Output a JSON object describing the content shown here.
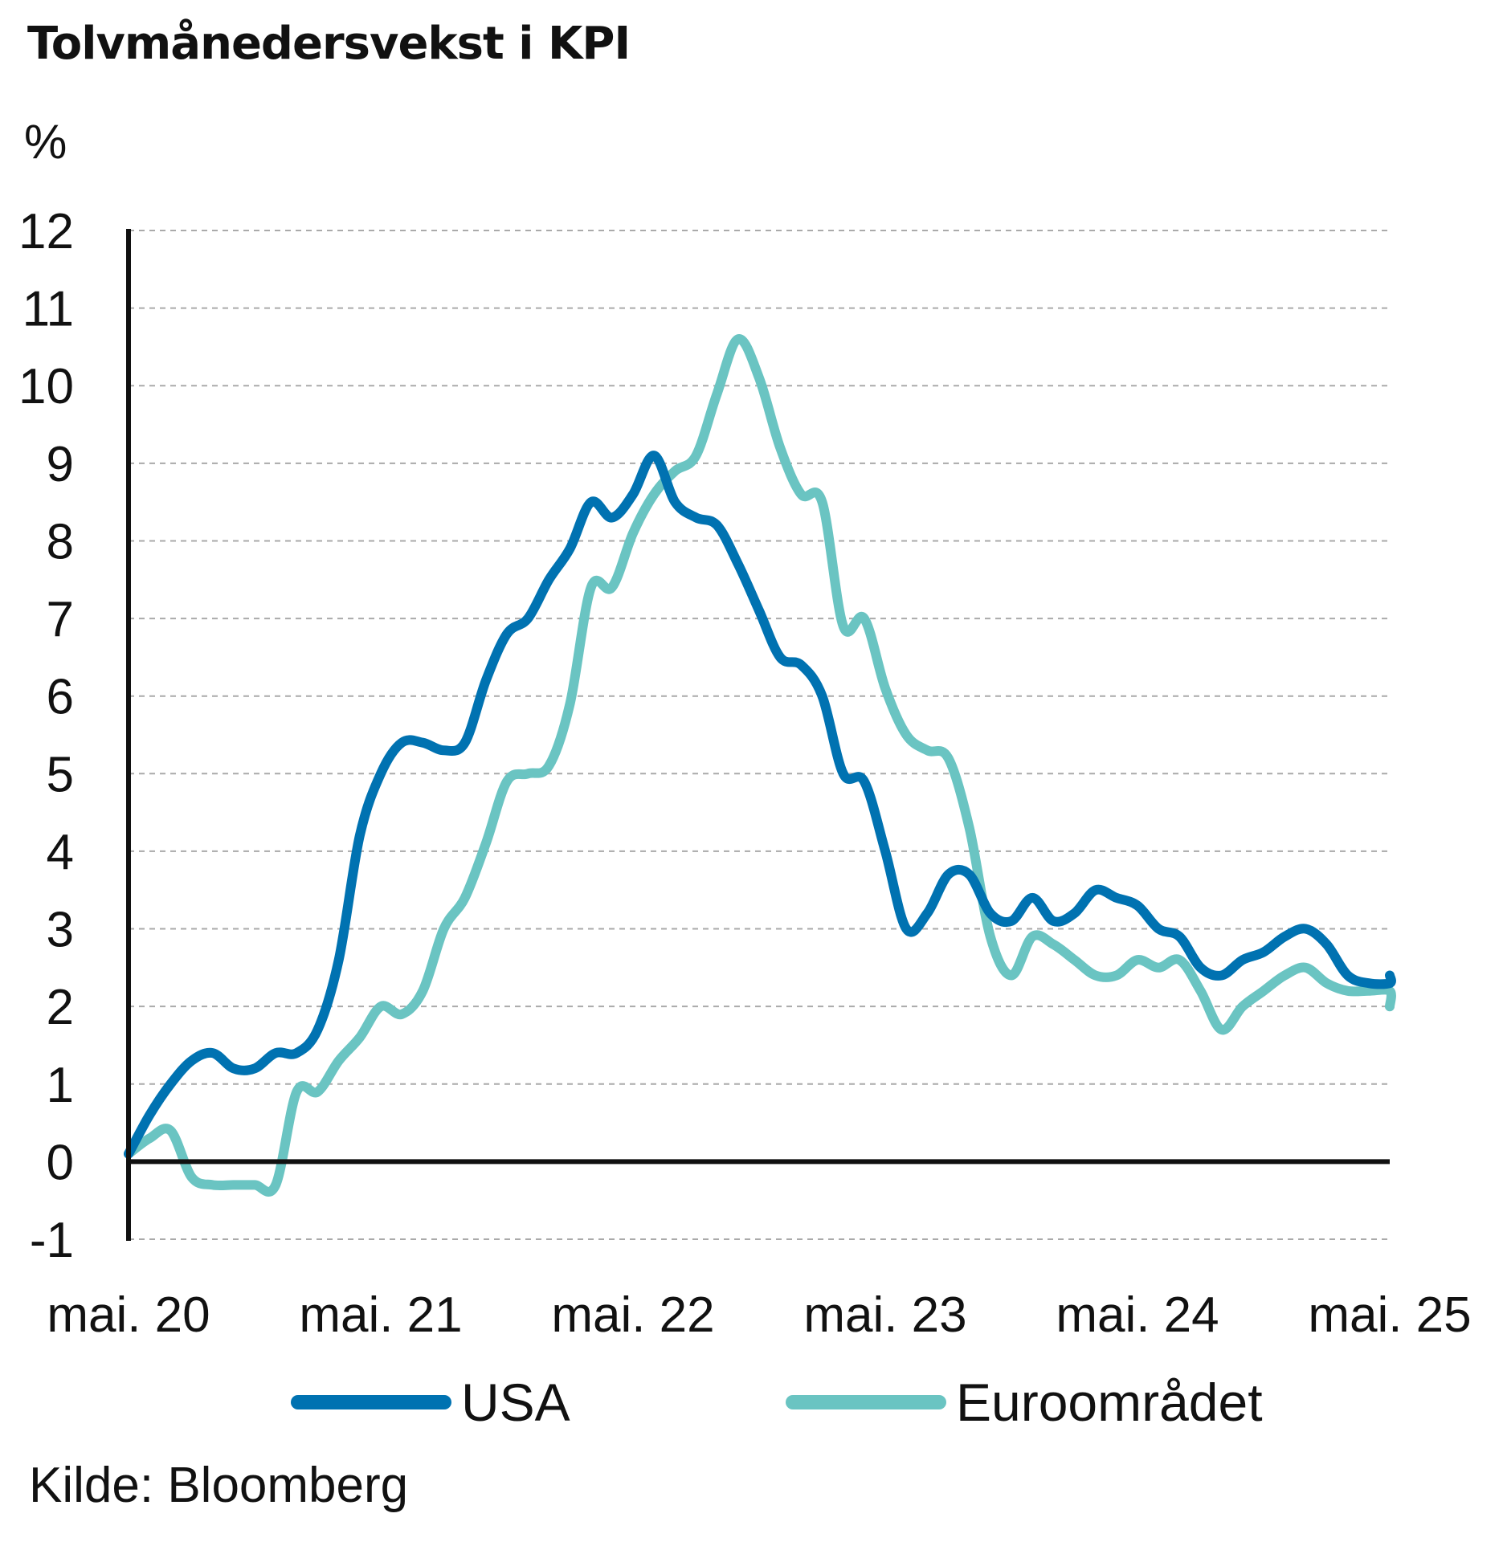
{
  "title": "Tolvmånedersvekst i KPI",
  "unit": "%",
  "source": "Kilde: Bloomberg",
  "colors": {
    "usa": "#0072b1",
    "euro": "#6ac4c2",
    "axis": "#111111",
    "grid": "#aaaaaa"
  },
  "chart_data": {
    "type": "line",
    "title": "Tolvmånedersvekst i KPI",
    "ylabel": "%",
    "xlabel": "",
    "ylim": [
      -1,
      12
    ],
    "yticks": [
      "-1",
      "0",
      "1",
      "2",
      "3",
      "4",
      "5",
      "6",
      "7",
      "8",
      "9",
      "10",
      "11",
      "12"
    ],
    "xticks": [
      "mai. 20",
      "mai. 21",
      "mai. 22",
      "mai. 23",
      "mai. 24",
      "mai. 25"
    ],
    "grid": true,
    "legend_position": "bottom",
    "x": [
      "2020-05",
      "2020-06",
      "2020-07",
      "2020-08",
      "2020-09",
      "2020-10",
      "2020-11",
      "2020-12",
      "2021-01",
      "2021-02",
      "2021-03",
      "2021-04",
      "2021-05",
      "2021-06",
      "2021-07",
      "2021-08",
      "2021-09",
      "2021-10",
      "2021-11",
      "2021-12",
      "2022-01",
      "2022-02",
      "2022-03",
      "2022-04",
      "2022-05",
      "2022-06",
      "2022-07",
      "2022-08",
      "2022-09",
      "2022-10",
      "2022-11",
      "2022-12",
      "2023-01",
      "2023-02",
      "2023-03",
      "2023-04",
      "2023-05",
      "2023-06",
      "2023-07",
      "2023-08",
      "2023-09",
      "2023-10",
      "2023-11",
      "2023-12",
      "2024-01",
      "2024-02",
      "2024-03",
      "2024-04",
      "2024-05",
      "2024-06",
      "2024-07",
      "2024-08",
      "2024-09",
      "2024-10",
      "2024-11",
      "2024-12",
      "2025-01",
      "2025-02",
      "2025-03",
      "2025-04",
      "2025-05",
      "2025-06"
    ],
    "series": [
      {
        "name": "USA",
        "color": "#0072b1",
        "values": [
          0.1,
          0.6,
          1.0,
          1.3,
          1.4,
          1.2,
          1.2,
          1.4,
          1.4,
          1.7,
          2.6,
          4.2,
          5.0,
          5.4,
          5.4,
          5.3,
          5.4,
          6.2,
          6.8,
          7.0,
          7.5,
          7.9,
          8.5,
          8.3,
          8.6,
          9.1,
          8.5,
          8.3,
          8.2,
          7.7,
          7.1,
          6.5,
          6.4,
          6.0,
          5.0,
          4.9,
          4.0,
          3.0,
          3.2,
          3.7,
          3.7,
          3.2,
          3.1,
          3.4,
          3.1,
          3.2,
          3.5,
          3.4,
          3.3,
          3.0,
          2.9,
          2.5,
          2.4,
          2.6,
          2.7,
          2.9,
          3.0,
          2.8,
          2.4,
          2.3,
          2.3,
          2.4
        ]
      },
      {
        "name": "Euroområdet",
        "color": "#6ac4c2",
        "values": [
          0.1,
          0.3,
          0.4,
          -0.2,
          -0.3,
          -0.3,
          -0.3,
          -0.3,
          0.9,
          0.9,
          1.3,
          1.6,
          2.0,
          1.9,
          2.2,
          3.0,
          3.4,
          4.1,
          4.9,
          5.0,
          5.1,
          5.9,
          7.4,
          7.4,
          8.1,
          8.6,
          8.9,
          9.1,
          9.9,
          10.6,
          10.1,
          9.2,
          8.6,
          8.5,
          6.9,
          7.0,
          6.1,
          5.5,
          5.3,
          5.2,
          4.3,
          2.9,
          2.4,
          2.9,
          2.8,
          2.6,
          2.4,
          2.4,
          2.6,
          2.5,
          2.6,
          2.2,
          1.7,
          2.0,
          2.2,
          2.4,
          2.5,
          2.3,
          2.2,
          2.2,
          2.2,
          2.0
        ]
      }
    ]
  }
}
